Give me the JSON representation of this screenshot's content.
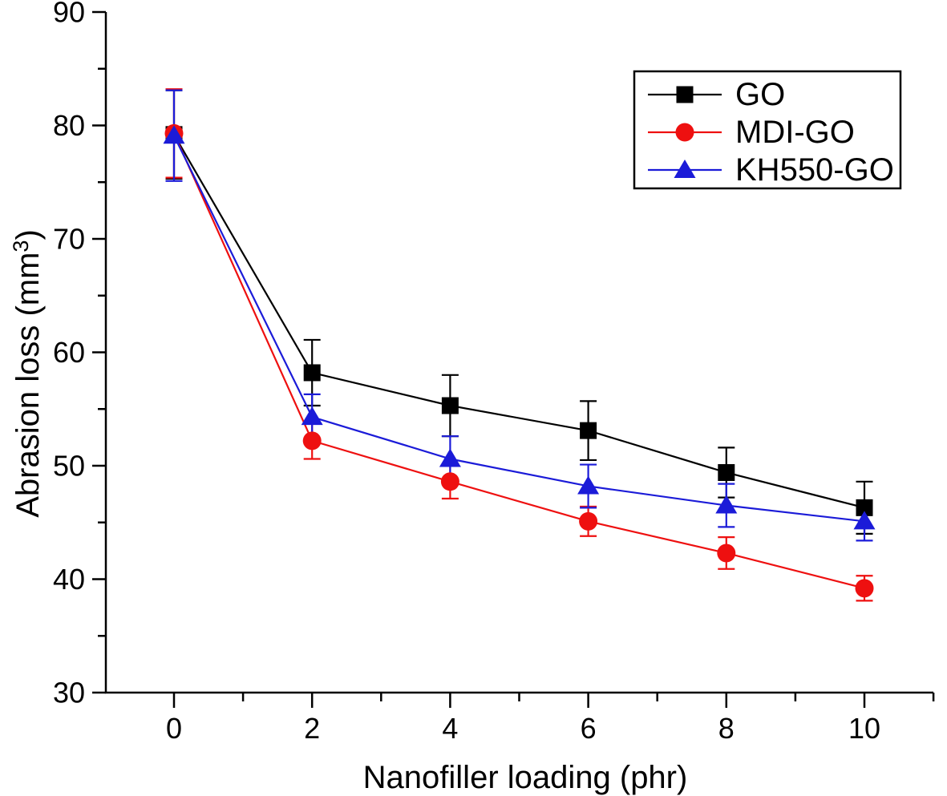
{
  "figure": {
    "background": "#ffffff"
  },
  "chart_data": {
    "type": "line",
    "title": "",
    "xlabel": "Nanofiller loading (phr)",
    "ylabel": "Abrasion loss (mm³)",
    "x": [
      0,
      2,
      4,
      6,
      8,
      10
    ],
    "xlim": [
      -1,
      11
    ],
    "ylim": [
      30,
      90
    ],
    "x_major_ticks": [
      0,
      2,
      4,
      6,
      8,
      10
    ],
    "x_minor_ticks": [
      1,
      3,
      5,
      7,
      9,
      11
    ],
    "y_major_ticks": [
      30,
      40,
      50,
      60,
      70,
      80,
      90
    ],
    "y_minor_ticks": [
      35,
      45,
      55,
      65,
      75,
      85
    ],
    "grid": false,
    "legend_position": "top-right",
    "axis_color": "#000000",
    "series": [
      {
        "name": "GO",
        "marker": "square",
        "color": "#000000",
        "values": [
          79.2,
          58.2,
          55.3,
          53.1,
          49.4,
          46.3
        ],
        "errors": [
          3.9,
          2.9,
          2.7,
          2.6,
          2.2,
          2.3
        ]
      },
      {
        "name": "MDI-GO",
        "marker": "circle",
        "color": "#ee1010",
        "values": [
          79.3,
          52.2,
          48.6,
          45.1,
          42.3,
          39.2
        ],
        "errors": [
          3.9,
          1.6,
          1.5,
          1.3,
          1.4,
          1.1
        ]
      },
      {
        "name": "KH550-GO",
        "marker": "triangle",
        "color": "#1b1bd8",
        "values": [
          79.1,
          54.3,
          50.6,
          48.2,
          46.5,
          45.1
        ],
        "errors": [
          4.0,
          2.0,
          2.0,
          1.9,
          1.9,
          1.7
        ]
      }
    ]
  }
}
